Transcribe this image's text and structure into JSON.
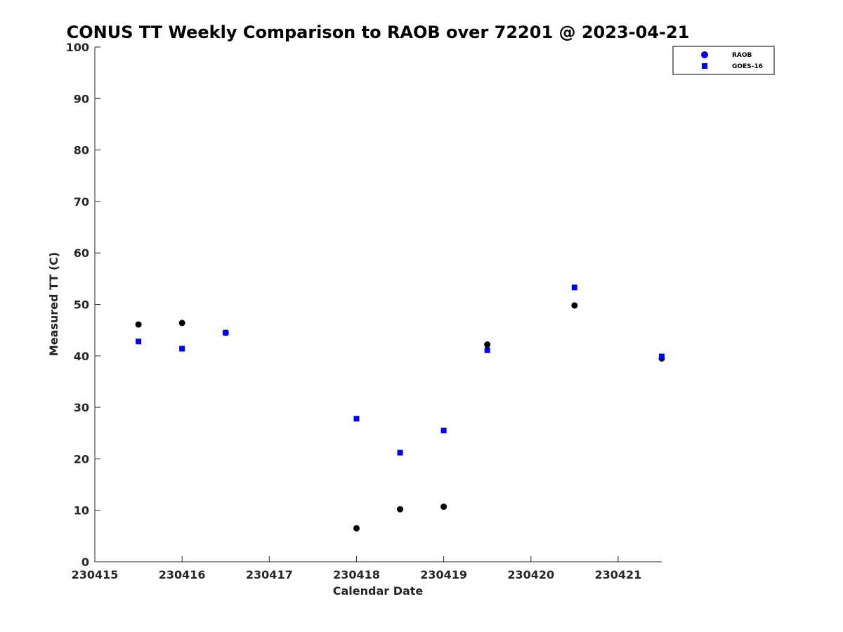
{
  "chart_data": {
    "type": "scatter",
    "title": "CONUS TT Weekly Comparison to RAOB over 72201 @ 2023-04-21",
    "xlabel": "Calendar Date",
    "ylabel": "Measured TT (C)",
    "xlim": [
      230415,
      230421.5
    ],
    "ylim": [
      0,
      100
    ],
    "x_ticks": [
      230415,
      230416,
      230417,
      230418,
      230419,
      230420,
      230421
    ],
    "x_tick_labels": [
      "230415",
      "230416",
      "230417",
      "230418",
      "230419",
      "230420",
      "230421"
    ],
    "y_ticks": [
      0,
      10,
      20,
      30,
      40,
      50,
      60,
      70,
      80,
      90,
      100
    ],
    "y_tick_labels": [
      "0",
      "10",
      "20",
      "30",
      "40",
      "50",
      "60",
      "70",
      "80",
      "90",
      "100"
    ],
    "grid": false,
    "legend_position": "top-right",
    "series": [
      {
        "name": "RAOB",
        "marker": "circle",
        "legend_color": "#0000ff",
        "color": "#000000",
        "x": [
          230415.5,
          230416,
          230416.5,
          230418,
          230418.5,
          230419,
          230419.5,
          230420.5,
          230421.5
        ],
        "y": [
          46.1,
          46.4,
          44.5,
          6.5,
          10.2,
          10.7,
          42.2,
          49.8,
          39.5
        ]
      },
      {
        "name": "GOES-16",
        "marker": "square",
        "legend_color": "#0000ff",
        "color": "#0000ff",
        "x": [
          230415.5,
          230416,
          230416.5,
          230418,
          230418.5,
          230419,
          230419.5,
          230420.5,
          230421.5
        ],
        "y": [
          42.8,
          41.4,
          44.5,
          27.8,
          21.2,
          25.5,
          41.1,
          53.3,
          39.9
        ]
      }
    ]
  }
}
